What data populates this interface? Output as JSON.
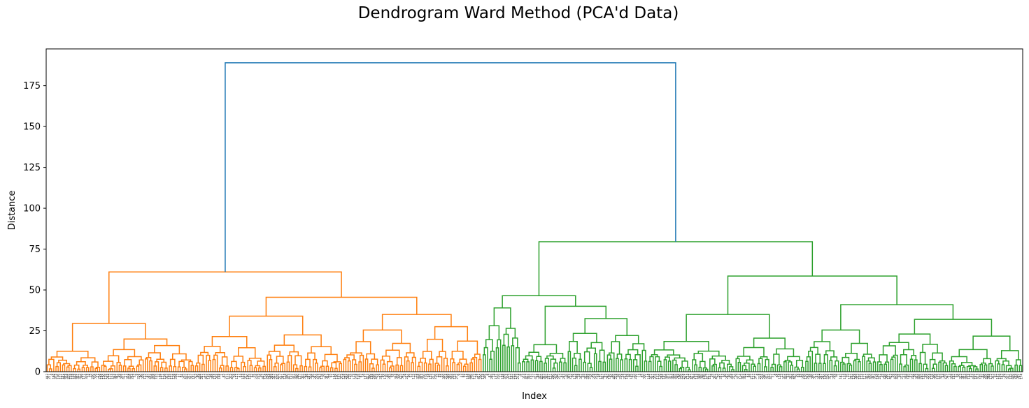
{
  "chart_data": {
    "type": "dendrogram",
    "title": "Dendrogram Ward Method (PCA'd Data)",
    "xlabel": "Index",
    "ylabel": "Distance",
    "ylim": [
      0,
      197.5
    ],
    "yticks": [
      0,
      25,
      50,
      75,
      100,
      125,
      150,
      175
    ],
    "grid": false,
    "legend": "none",
    "colors": {
      "root": "#1f77b4",
      "cluster_1": "#ff7f0e",
      "cluster_2": "#2ca02c"
    },
    "n_leaves": 448,
    "clusters": [
      {
        "name": "cluster_1",
        "leaf_count": 200,
        "color": "#ff7f0e"
      },
      {
        "name": "cluster_2",
        "leaf_count": 248,
        "color": "#2ca02c"
      }
    ],
    "merges": [
      {
        "node": "root",
        "children": [
          "A",
          "B"
        ],
        "distance": 189,
        "color": "#1f77b4"
      },
      {
        "node": "A",
        "children": [
          "A1",
          "A2"
        ],
        "distance": 61,
        "color": "#ff7f0e"
      },
      {
        "node": "A1",
        "children": [
          "A11",
          "A12"
        ],
        "distance": 29.5,
        "color": "#ff7f0e"
      },
      {
        "node": "A11",
        "children": [],
        "distance": 12.5,
        "color": "#ff7f0e"
      },
      {
        "node": "A12",
        "children": [
          "A121",
          "A122"
        ],
        "distance": 20,
        "color": "#ff7f0e"
      },
      {
        "node": "A121",
        "children": [],
        "distance": 13.5,
        "color": "#ff7f0e"
      },
      {
        "node": "A122",
        "children": [],
        "distance": 16,
        "color": "#ff7f0e"
      },
      {
        "node": "A2",
        "children": [
          "A21",
          "A22"
        ],
        "distance": 45.5,
        "color": "#ff7f0e"
      },
      {
        "node": "A21",
        "children": [
          "A211",
          "A212"
        ],
        "distance": 34,
        "color": "#ff7f0e"
      },
      {
        "node": "A211",
        "children": [],
        "distance": 21.5,
        "color": "#ff7f0e"
      },
      {
        "node": "A212",
        "children": [],
        "distance": 22.5,
        "color": "#ff7f0e"
      },
      {
        "node": "A22",
        "children": [
          "A221",
          "A222"
        ],
        "distance": 35,
        "color": "#ff7f0e"
      },
      {
        "node": "A221",
        "children": [],
        "distance": 25.5,
        "color": "#ff7f0e"
      },
      {
        "node": "A222",
        "children": [],
        "distance": 27.5,
        "color": "#ff7f0e"
      },
      {
        "node": "B",
        "children": [
          "B1",
          "B2"
        ],
        "distance": 79.5,
        "color": "#2ca02c"
      },
      {
        "node": "B1",
        "children": [
          "B11",
          "B12"
        ],
        "distance": 46.5,
        "color": "#2ca02c"
      },
      {
        "node": "B11",
        "children": [],
        "distance": 39,
        "color": "#2ca02c"
      },
      {
        "node": "B12",
        "children": [
          "B121",
          "B122"
        ],
        "distance": 40,
        "color": "#2ca02c"
      },
      {
        "node": "B121",
        "children": [],
        "distance": 16.5,
        "color": "#2ca02c"
      },
      {
        "node": "B122",
        "children": [],
        "distance": 32.5,
        "color": "#2ca02c"
      },
      {
        "node": "B2",
        "children": [
          "B21",
          "B22"
        ],
        "distance": 58.5,
        "color": "#2ca02c"
      },
      {
        "node": "B21",
        "children": [
          "B211",
          "B212"
        ],
        "distance": 35,
        "color": "#2ca02c"
      },
      {
        "node": "B211",
        "children": [],
        "distance": 18.5,
        "color": "#2ca02c"
      },
      {
        "node": "B212",
        "children": [],
        "distance": 20.5,
        "color": "#2ca02c"
      },
      {
        "node": "B22",
        "children": [
          "B221",
          "B222"
        ],
        "distance": 41,
        "color": "#2ca02c"
      },
      {
        "node": "B221",
        "children": [],
        "distance": 25.5,
        "color": "#2ca02c"
      },
      {
        "node": "B222",
        "children": [],
        "distance": 32,
        "color": "#2ca02c"
      }
    ]
  }
}
